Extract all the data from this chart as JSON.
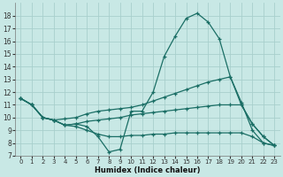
{
  "xlabel": "Humidex (Indice chaleur)",
  "xlim": [
    -0.5,
    23.5
  ],
  "ylim": [
    7,
    19
  ],
  "yticks": [
    7,
    8,
    9,
    10,
    11,
    12,
    13,
    14,
    15,
    16,
    17,
    18
  ],
  "xticks": [
    0,
    1,
    2,
    3,
    4,
    5,
    6,
    7,
    8,
    9,
    10,
    11,
    12,
    13,
    14,
    15,
    16,
    17,
    18,
    19,
    20,
    21,
    22,
    23
  ],
  "bg_color": "#c8e8e5",
  "grid_color": "#a8cfcc",
  "line_color": "#1a6e65",
  "lines": [
    {
      "x": [
        0,
        1,
        2,
        3,
        4,
        5,
        6,
        7,
        8,
        9,
        10,
        11,
        12,
        13,
        14,
        15,
        16,
        17,
        18,
        19,
        20,
        21,
        22,
        23
      ],
      "y": [
        11.5,
        11.0,
        10.0,
        9.8,
        9.4,
        9.5,
        9.3,
        8.5,
        7.3,
        7.5,
        10.5,
        10.5,
        12.0,
        14.8,
        16.4,
        17.8,
        18.2,
        17.5,
        16.2,
        13.2,
        11.2,
        9.0,
        8.0,
        7.8
      ]
    },
    {
      "x": [
        0,
        1,
        2,
        3,
        4,
        5,
        6,
        7,
        8,
        9,
        10,
        11,
        12,
        13,
        14,
        15,
        16,
        17,
        18,
        19,
        20,
        21,
        22,
        23
      ],
      "y": [
        11.5,
        11.0,
        10.0,
        9.8,
        9.9,
        10.0,
        10.3,
        10.5,
        10.6,
        10.7,
        10.8,
        11.0,
        11.3,
        11.6,
        11.9,
        12.2,
        12.5,
        12.8,
        13.0,
        13.2,
        11.0,
        9.5,
        8.5,
        7.8
      ]
    },
    {
      "x": [
        0,
        1,
        2,
        3,
        4,
        5,
        6,
        7,
        8,
        9,
        10,
        11,
        12,
        13,
        14,
        15,
        16,
        17,
        18,
        19,
        20,
        21,
        22,
        23
      ],
      "y": [
        11.5,
        11.0,
        10.0,
        9.8,
        9.4,
        9.5,
        9.7,
        9.8,
        9.9,
        10.0,
        10.2,
        10.3,
        10.4,
        10.5,
        10.6,
        10.7,
        10.8,
        10.9,
        11.0,
        11.0,
        11.0,
        9.5,
        8.5,
        7.8
      ]
    },
    {
      "x": [
        0,
        1,
        2,
        3,
        4,
        5,
        6,
        7,
        8,
        9,
        10,
        11,
        12,
        13,
        14,
        15,
        16,
        17,
        18,
        19,
        20,
        21,
        22,
        23
      ],
      "y": [
        11.5,
        11.0,
        10.0,
        9.8,
        9.4,
        9.3,
        9.0,
        8.7,
        8.5,
        8.5,
        8.6,
        8.6,
        8.7,
        8.7,
        8.8,
        8.8,
        8.8,
        8.8,
        8.8,
        8.8,
        8.8,
        8.5,
        8.0,
        7.8
      ]
    }
  ]
}
